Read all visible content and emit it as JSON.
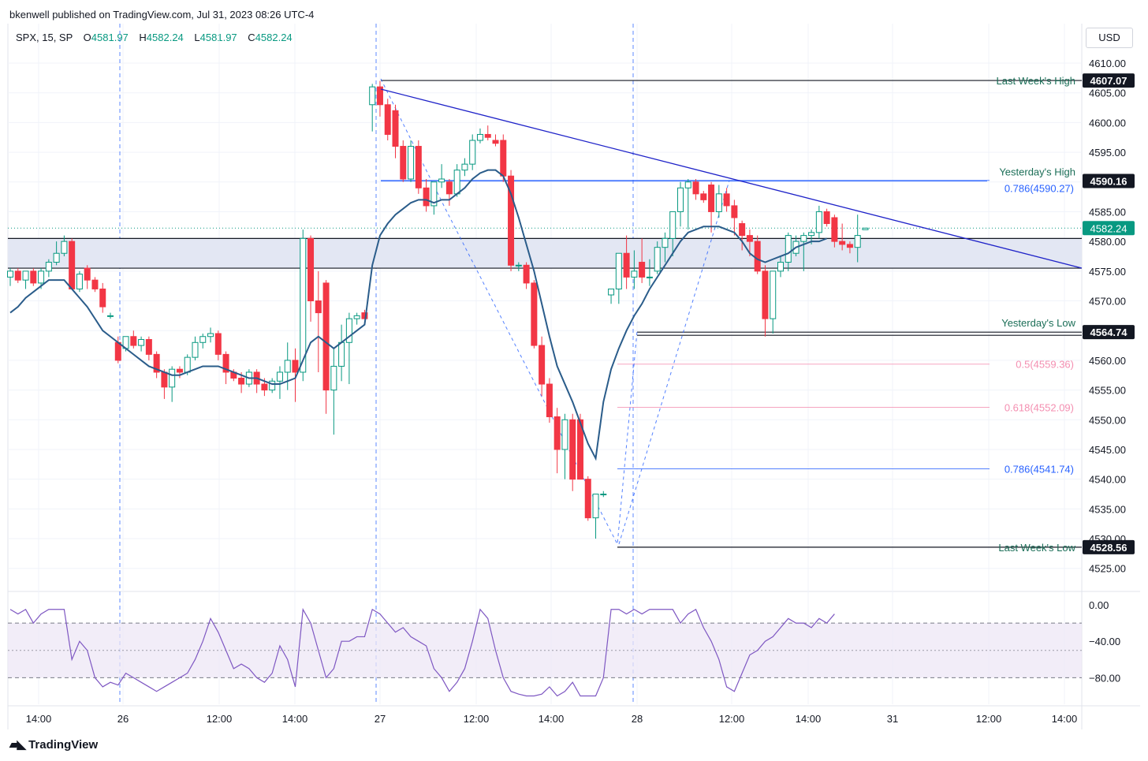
{
  "header": {
    "publish_line": "bkenwell published on TradingView.com, Jul 31, 2023 08:26 UTC-4"
  },
  "legend": {
    "symbol": "SPX, 15, SP",
    "open_label": "O",
    "open": "4581.97",
    "high_label": "H",
    "high": "4582.24",
    "low_label": "L",
    "low": "4581.97",
    "close_label": "C",
    "close": "4582.24"
  },
  "currency_button": "USD",
  "footer": {
    "brand": "TradingView",
    "logo": "TV-logo-icon"
  },
  "colors": {
    "up": "#089981",
    "down": "#f23645",
    "ema": "#2a5c8a",
    "trend": "#1e22c8",
    "rsi": "#7e57c2",
    "fib_pink": "#f48fb1",
    "fib_blue": "#2962ff",
    "text_green": "#1b6e57"
  },
  "chart_data": {
    "type": "candlestick",
    "symbol": "SPX",
    "interval": "15",
    "currency": "USD",
    "y_axis": {
      "ticks": [
        4525,
        4530,
        4535,
        4540,
        4545,
        4550,
        4555,
        4560,
        4565,
        4570,
        4575,
        4580,
        4585,
        4590,
        4595,
        4600,
        4605,
        4610
      ],
      "tick_labels": [
        "4525.00",
        "4530.00",
        "4535.00",
        "4540.00",
        "4545.00",
        "4550.00",
        "4555.00",
        "4560.00",
        "4565.00",
        "4570.00",
        "4575.00",
        "4580.00",
        "4585.00",
        "4590.00",
        "4595.00",
        "4600.00",
        "4605.00",
        "4610.00"
      ],
      "range": [
        4521,
        4612
      ]
    },
    "x_axis": {
      "tick_labels": [
        "14:00",
        "26",
        "12:00",
        "14:00",
        "27",
        "12:00",
        "14:00",
        "28",
        "12:00",
        "14:00",
        "31",
        "12:00",
        "14:00"
      ]
    },
    "grid": true,
    "candles": [
      {
        "o": 4574,
        "h": 4575.5,
        "l": 4572.5,
        "c": 4575
      },
      {
        "o": 4575,
        "h": 4575.5,
        "l": 4573,
        "c": 4573.5
      },
      {
        "o": 4573.5,
        "h": 4575,
        "l": 4572,
        "c": 4575
      },
      {
        "o": 4575,
        "h": 4575.5,
        "l": 4572.5,
        "c": 4573
      },
      {
        "o": 4573,
        "h": 4575.5,
        "l": 4572,
        "c": 4575
      },
      {
        "o": 4575,
        "h": 4577,
        "l": 4574,
        "c": 4576.5
      },
      {
        "o": 4576.5,
        "h": 4580,
        "l": 4576,
        "c": 4578
      },
      {
        "o": 4578,
        "h": 4581,
        "l": 4577.5,
        "c": 4580
      },
      {
        "o": 4580,
        "h": 4580.5,
        "l": 4572,
        "c": 4572
      },
      {
        "o": 4572,
        "h": 4575,
        "l": 4571.5,
        "c": 4574.5
      },
      {
        "o": 4575.5,
        "h": 4576,
        "l": 4572,
        "c": 4573.5
      },
      {
        "o": 4573.5,
        "h": 4574,
        "l": 4571.5,
        "c": 4572
      },
      {
        "o": 4572,
        "h": 4573,
        "l": 4568,
        "c": 4569
      },
      {
        "o": 4567.5,
        "h": 4568,
        "l": 4567,
        "c": 4567.5
      },
      {
        "o": 4563,
        "h": 4564,
        "l": 4559.5,
        "c": 4560
      },
      {
        "o": 4562,
        "h": 4564,
        "l": 4561.5,
        "c": 4564
      },
      {
        "o": 4564,
        "h": 4565,
        "l": 4562,
        "c": 4562.5
      },
      {
        "o": 4562.5,
        "h": 4564,
        "l": 4561.5,
        "c": 4563.5
      },
      {
        "o": 4563.5,
        "h": 4564,
        "l": 4560,
        "c": 4561
      },
      {
        "o": 4561,
        "h": 4561.5,
        "l": 4557,
        "c": 4558
      },
      {
        "o": 4558,
        "h": 4558.5,
        "l": 4553.5,
        "c": 4555.5
      },
      {
        "o": 4555.5,
        "h": 4559,
        "l": 4553,
        "c": 4558.5
      },
      {
        "o": 4558.5,
        "h": 4559,
        "l": 4557,
        "c": 4558
      },
      {
        "o": 4558,
        "h": 4561,
        "l": 4557.5,
        "c": 4560.5
      },
      {
        "o": 4560.5,
        "h": 4564,
        "l": 4560,
        "c": 4563
      },
      {
        "o": 4563,
        "h": 4564.5,
        "l": 4562,
        "c": 4564
      },
      {
        "o": 4564,
        "h": 4565.5,
        "l": 4563,
        "c": 4564.5
      },
      {
        "o": 4564.5,
        "h": 4565,
        "l": 4560,
        "c": 4561
      },
      {
        "o": 4561,
        "h": 4561.5,
        "l": 4556,
        "c": 4558
      },
      {
        "o": 4558,
        "h": 4558.5,
        "l": 4556.5,
        "c": 4557
      },
      {
        "o": 4557,
        "h": 4558,
        "l": 4554.5,
        "c": 4556
      },
      {
        "o": 4556,
        "h": 4558.5,
        "l": 4555.5,
        "c": 4558
      },
      {
        "o": 4558,
        "h": 4558.5,
        "l": 4554.5,
        "c": 4556
      },
      {
        "o": 4556,
        "h": 4557,
        "l": 4554,
        "c": 4555
      },
      {
        "o": 4555,
        "h": 4557,
        "l": 4554.5,
        "c": 4556.5
      },
      {
        "o": 4556.5,
        "h": 4559,
        "l": 4553.5,
        "c": 4558
      },
      {
        "o": 4558,
        "h": 4563,
        "l": 4555,
        "c": 4560
      },
      {
        "o": 4560,
        "h": 4562,
        "l": 4553,
        "c": 4558
      },
      {
        "o": 4558,
        "h": 4582,
        "l": 4556.5,
        "c": 4580.5
      },
      {
        "o": 4580.5,
        "h": 4581,
        "l": 4566.5,
        "c": 4570
      },
      {
        "o": 4570,
        "h": 4575,
        "l": 4558,
        "c": 4568
      },
      {
        "o": 4573,
        "h": 4573.5,
        "l": 4551,
        "c": 4555
      },
      {
        "o": 4555,
        "h": 4562,
        "l": 4547.5,
        "c": 4559
      },
      {
        "o": 4559,
        "h": 4566,
        "l": 4556.5,
        "c": 4563
      },
      {
        "o": 4563,
        "h": 4568,
        "l": 4556,
        "c": 4567
      },
      {
        "o": 4567,
        "h": 4568,
        "l": 4566,
        "c": 4567.5
      },
      {
        "o": 4568,
        "h": 4568.5,
        "l": 4567,
        "c": 4567
      },
      {
        "o": 4603,
        "h": 4606.5,
        "l": 4598.5,
        "c": 4606
      },
      {
        "o": 4606,
        "h": 4607,
        "l": 4601,
        "c": 4603
      },
      {
        "o": 4603,
        "h": 4604,
        "l": 4597,
        "c": 4598
      },
      {
        "o": 4602,
        "h": 4603,
        "l": 4594,
        "c": 4596
      },
      {
        "o": 4596,
        "h": 4597,
        "l": 4590,
        "c": 4590.5
      },
      {
        "o": 4590.5,
        "h": 4597,
        "l": 4590,
        "c": 4596
      },
      {
        "o": 4596,
        "h": 4597,
        "l": 4588,
        "c": 4589
      },
      {
        "o": 4589,
        "h": 4590.5,
        "l": 4585,
        "c": 4586
      },
      {
        "o": 4586,
        "h": 4590,
        "l": 4584.5,
        "c": 4590
      },
      {
        "o": 4590,
        "h": 4593,
        "l": 4589,
        "c": 4590.5
      },
      {
        "o": 4590,
        "h": 4590.5,
        "l": 4586,
        "c": 4588
      },
      {
        "o": 4588,
        "h": 4593,
        "l": 4587.5,
        "c": 4592
      },
      {
        "o": 4592,
        "h": 4594,
        "l": 4591,
        "c": 4593
      },
      {
        "o": 4593,
        "h": 4598,
        "l": 4592,
        "c": 4597
      },
      {
        "o": 4597,
        "h": 4599,
        "l": 4596.5,
        "c": 4598
      },
      {
        "o": 4598,
        "h": 4599.5,
        "l": 4597,
        "c": 4597.5
      },
      {
        "o": 4597,
        "h": 4598,
        "l": 4596,
        "c": 4596.5
      },
      {
        "o": 4597,
        "h": 4598,
        "l": 4590,
        "c": 4591
      },
      {
        "o": 4591,
        "h": 4592,
        "l": 4575,
        "c": 4576
      },
      {
        "o": 4576,
        "h": 4576.5,
        "l": 4575,
        "c": 4576
      },
      {
        "o": 4576,
        "h": 4576.5,
        "l": 4572,
        "c": 4573
      },
      {
        "o": 4573,
        "h": 4573.5,
        "l": 4562,
        "c": 4562.5
      },
      {
        "o": 4562.5,
        "h": 4564,
        "l": 4554,
        "c": 4556
      },
      {
        "o": 4556,
        "h": 4557,
        "l": 4549.5,
        "c": 4550.5
      },
      {
        "o": 4550.5,
        "h": 4552,
        "l": 4541,
        "c": 4545
      },
      {
        "o": 4545,
        "h": 4551,
        "l": 4540,
        "c": 4550
      },
      {
        "o": 4550,
        "h": 4551,
        "l": 4538,
        "c": 4540
      },
      {
        "o": 4550,
        "h": 4551,
        "l": 4540,
        "c": 4540
      },
      {
        "o": 4540,
        "h": 4540.5,
        "l": 4533,
        "c": 4533.5
      },
      {
        "o": 4533.5,
        "h": 4537.5,
        "l": 4530,
        "c": 4537.5
      },
      {
        "o": 4537.5,
        "h": 4538,
        "l": 4537,
        "c": 4537.5
      },
      {
        "o": 4571,
        "h": 4571.5,
        "l": 4569.5,
        "c": 4572
      },
      {
        "o": 4572,
        "h": 4578,
        "l": 4569.5,
        "c": 4578
      },
      {
        "o": 4578,
        "h": 4581,
        "l": 4572,
        "c": 4574
      },
      {
        "o": 4574,
        "h": 4578.5,
        "l": 4572,
        "c": 4575
      },
      {
        "o": 4576.5,
        "h": 4580.5,
        "l": 4573,
        "c": 4574
      },
      {
        "o": 4574,
        "h": 4577,
        "l": 4572.5,
        "c": 4574
      },
      {
        "o": 4575,
        "h": 4580,
        "l": 4574.5,
        "c": 4579
      },
      {
        "o": 4579,
        "h": 4581.5,
        "l": 4576.5,
        "c": 4580.5
      },
      {
        "o": 4580.5,
        "h": 4585,
        "l": 4577.5,
        "c": 4585
      },
      {
        "o": 4585,
        "h": 4590,
        "l": 4582.5,
        "c": 4589
      },
      {
        "o": 4589,
        "h": 4590.5,
        "l": 4582,
        "c": 4590
      },
      {
        "o": 4590,
        "h": 4590.5,
        "l": 4587,
        "c": 4588
      },
      {
        "o": 4588,
        "h": 4588.5,
        "l": 4586.5,
        "c": 4587
      },
      {
        "o": 4589.5,
        "h": 4590,
        "l": 4581.5,
        "c": 4585
      },
      {
        "o": 4585,
        "h": 4589.5,
        "l": 4584,
        "c": 4588
      },
      {
        "o": 4588,
        "h": 4589,
        "l": 4585,
        "c": 4586
      },
      {
        "o": 4586,
        "h": 4587,
        "l": 4581,
        "c": 4584
      },
      {
        "o": 4583,
        "h": 4583.5,
        "l": 4578.5,
        "c": 4581
      },
      {
        "o": 4581,
        "h": 4582,
        "l": 4577.5,
        "c": 4580
      },
      {
        "o": 4580,
        "h": 4581,
        "l": 4574.5,
        "c": 4575
      },
      {
        "o": 4575,
        "h": 4576,
        "l": 4564,
        "c": 4567
      },
      {
        "o": 4567,
        "h": 4575,
        "l": 4564.5,
        "c": 4575
      },
      {
        "o": 4575,
        "h": 4577.5,
        "l": 4574,
        "c": 4576.5
      },
      {
        "o": 4576.5,
        "h": 4581.5,
        "l": 4575,
        "c": 4581
      },
      {
        "o": 4578,
        "h": 4581,
        "l": 4577.5,
        "c": 4580
      },
      {
        "o": 4580,
        "h": 4581.5,
        "l": 4575,
        "c": 4581
      },
      {
        "o": 4581,
        "h": 4582,
        "l": 4579.5,
        "c": 4581.5
      },
      {
        "o": 4581.5,
        "h": 4586,
        "l": 4580.5,
        "c": 4585
      },
      {
        "o": 4585,
        "h": 4585.5,
        "l": 4582.5,
        "c": 4583
      },
      {
        "o": 4584,
        "h": 4584.5,
        "l": 4579,
        "c": 4580
      },
      {
        "o": 4580,
        "h": 4583,
        "l": 4578.5,
        "c": 4579.5
      },
      {
        "o": 4579.5,
        "h": 4580,
        "l": 4578,
        "c": 4579
      },
      {
        "o": 4579,
        "h": 4584.5,
        "l": 4576.5,
        "c": 4581
      },
      {
        "o": 4581.97,
        "h": 4582.24,
        "l": 4581.97,
        "c": 4582.24
      }
    ],
    "ema": [
      4568,
      4569,
      4570.5,
      4571.5,
      4572.5,
      4573.5,
      4573.5,
      4573.5,
      4572,
      4570.5,
      4569,
      4567,
      4565,
      4564,
      4563,
      4562,
      4561,
      4560,
      4559,
      4558.5,
      4558,
      4557.5,
      4557.5,
      4558,
      4558.5,
      4559,
      4559,
      4559,
      4558.5,
      4558,
      4557.5,
      4557,
      4557,
      4556.5,
      4556,
      4556,
      4556.5,
      4557,
      4560,
      4563,
      4564,
      4563,
      4562,
      4563,
      4564,
      4565,
      4566,
      4576,
      4581,
      4583,
      4584.5,
      4585.5,
      4586.5,
      4587,
      4587,
      4586.5,
      4587,
      4587,
      4588,
      4589,
      4590.5,
      4591.5,
      4592,
      4592,
      4591,
      4588,
      4584,
      4579.5,
      4575,
      4569.5,
      4564,
      4559,
      4556,
      4553,
      4549.5,
      4546,
      4543.5,
      4553,
      4558.5,
      4562,
      4565,
      4567.5,
      4569.5,
      4572,
      4574,
      4576,
      4578,
      4580,
      4581.5,
      4582,
      4582.5,
      4582.5,
      4582.5,
      4582,
      4581.5,
      4580,
      4578,
      4577,
      4576.5,
      4577,
      4577.5,
      4578,
      4579,
      4579.5,
      4580,
      4580,
      4580.5
    ],
    "rsi": {
      "range": [
        -100,
        0
      ],
      "upper": -20,
      "middle": -50,
      "lower": -80,
      "tick_labels": [
        "0.00",
        "−40.00",
        "−80.00"
      ],
      "values": [
        -5,
        -10,
        -5,
        -20,
        -10,
        -5,
        -5,
        -5,
        -60,
        -40,
        -50,
        -80,
        -90,
        -85,
        -88,
        -75,
        -80,
        -85,
        -90,
        -95,
        -90,
        -85,
        -80,
        -75,
        -60,
        -40,
        -15,
        -30,
        -50,
        -70,
        -65,
        -70,
        -80,
        -85,
        -75,
        -45,
        -60,
        -90,
        -5,
        -20,
        -50,
        -80,
        -70,
        -40,
        -40,
        -35,
        -35,
        -5,
        -10,
        -20,
        -30,
        -25,
        -35,
        -40,
        -45,
        -70,
        -80,
        -95,
        -85,
        -70,
        -40,
        -5,
        -15,
        -50,
        -80,
        -95,
        -98,
        -100,
        -100,
        -98,
        -90,
        -100,
        -95,
        -85,
        -100,
        -100,
        -100,
        -80,
        -5,
        -5,
        -10,
        -5,
        -10,
        -5,
        -5,
        -5,
        -5,
        -20,
        -10,
        -5,
        -25,
        -40,
        -60,
        -90,
        -95,
        -75,
        -55,
        -50,
        -40,
        -35,
        -25,
        -15,
        -20,
        -20,
        -25,
        -15,
        -20,
        -10
      ]
    },
    "price_marks": [
      {
        "label": "Last Week's High",
        "value": 4607.07,
        "value_label": "4607.07"
      },
      {
        "label": "Yesterday's High",
        "value": 4590.16,
        "value_label": "4590.16"
      },
      {
        "label": "Yesterday's Low",
        "value": 4564.74,
        "value_label": "4564.74"
      },
      {
        "label": "Last Week's Low",
        "value": 4528.56,
        "value_label": "4528.56"
      }
    ],
    "fib_levels": [
      {
        "label": "0.786(4590.27)",
        "value": 4590.27
      },
      {
        "label": "0.5(4559.36)",
        "value": 4559.36
      },
      {
        "label": "0.618(4552.09)",
        "value": 4552.09
      },
      {
        "label": "0.786(4541.74)",
        "value": 4541.74
      }
    ],
    "last_price": {
      "value": 4582.24,
      "label": "4582.24"
    },
    "support_zone": [
      4575.5,
      4580.5
    ]
  }
}
